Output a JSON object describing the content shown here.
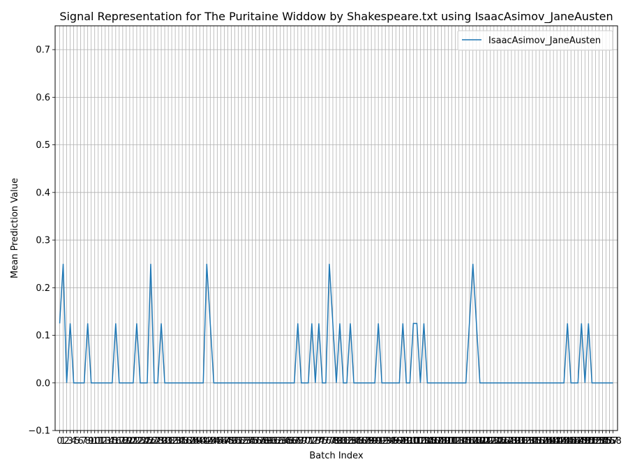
{
  "chart_data": {
    "type": "line",
    "title": "Signal Representation for The Puritaine Widdow by Shakespeare.txt using IsaacAsimov_JaneAusten",
    "xlabel": "Batch Index",
    "ylabel": "Mean Prediction Value",
    "xlim": [
      -1.3,
      159.3
    ],
    "ylim": [
      -0.1,
      0.75
    ],
    "yticks": [
      -0.1,
      0.0,
      0.1,
      0.2,
      0.3,
      0.4,
      0.5,
      0.6,
      0.7
    ],
    "ytick_labels": [
      "−0.1",
      "0.0",
      "0.1",
      "0.2",
      "0.3",
      "0.4",
      "0.5",
      "0.6",
      "0.7"
    ],
    "grid": true,
    "legend_position": "top-right",
    "series": [
      {
        "name": "IsaacAsimov_JaneAusten",
        "color": "#1f77b4",
        "values": [
          0.125,
          0.25,
          0,
          0.125,
          0,
          0,
          0,
          0,
          0.125,
          0,
          0,
          0,
          0,
          0,
          0,
          0,
          0.125,
          0,
          0,
          0,
          0,
          0,
          0.125,
          0,
          0,
          0,
          0.25,
          0,
          0,
          0.125,
          0,
          0,
          0,
          0,
          0,
          0,
          0,
          0,
          0,
          0,
          0,
          0,
          0.25,
          0.125,
          0,
          0,
          0,
          0,
          0,
          0,
          0,
          0,
          0,
          0,
          0,
          0,
          0,
          0,
          0,
          0,
          0,
          0,
          0,
          0,
          0,
          0,
          0,
          0,
          0.125,
          0,
          0,
          0,
          0.125,
          0,
          0.125,
          0,
          0,
          0.25,
          0.125,
          0,
          0.125,
          0,
          0,
          0.125,
          0,
          0,
          0,
          0,
          0,
          0,
          0,
          0.125,
          0,
          0,
          0,
          0,
          0,
          0,
          0.125,
          0,
          0,
          0.125,
          0.125,
          0,
          0.125,
          0,
          0,
          0,
          0,
          0,
          0,
          0,
          0,
          0,
          0,
          0,
          0,
          0.125,
          0.25,
          0.125,
          0,
          0,
          0,
          0,
          0,
          0,
          0,
          0,
          0,
          0,
          0,
          0,
          0,
          0,
          0,
          0,
          0,
          0,
          0,
          0,
          0,
          0,
          0,
          0,
          0,
          0.125,
          0,
          0,
          0,
          0.125,
          0,
          0.125,
          0,
          0,
          0,
          0,
          0,
          0,
          0
        ]
      }
    ]
  }
}
